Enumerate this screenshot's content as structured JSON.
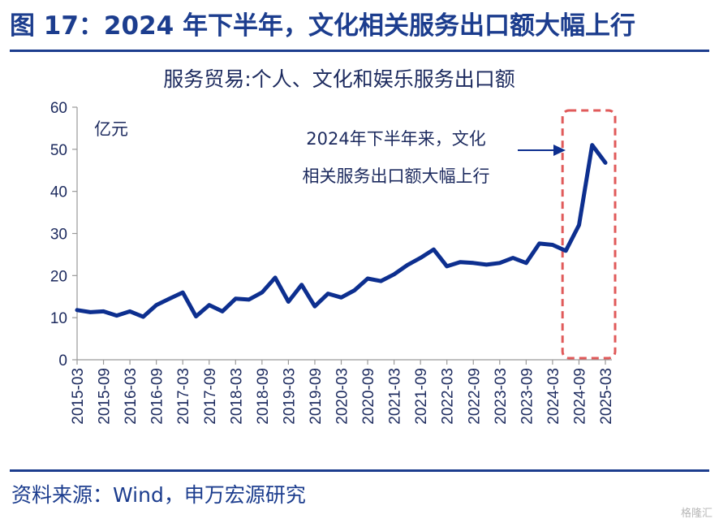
{
  "figure": {
    "title": "图 17：2024 年下半年，文化相关服务出口额大幅上行",
    "source": "资料来源：Wind，申万宏源研究",
    "watermark": "格隆汇"
  },
  "colors": {
    "brand": "#1c3d8e",
    "line": "#0d2f8f",
    "highlight_box": "#e05a5a",
    "text": "#1c2a5e"
  },
  "chart_data": {
    "type": "line",
    "title": "服务贸易:个人、文化和娱乐服务出口额",
    "unit_label": "亿元",
    "ylim": [
      0,
      60
    ],
    "yticks": [
      0,
      10,
      20,
      30,
      40,
      50,
      60
    ],
    "xlabel": "",
    "ylabel": "",
    "grid": false,
    "x_tick_labels": [
      "2015-03",
      "2015-09",
      "2016-03",
      "2016-09",
      "2017-03",
      "2017-09",
      "2018-03",
      "2018-09",
      "2019-03",
      "2019-09",
      "2020-03",
      "2020-09",
      "2021-03",
      "2021-09",
      "2022-03",
      "2022-09",
      "2023-03",
      "2023-09",
      "2024-03",
      "2024-09",
      "2025-03"
    ],
    "x": [
      "2015-03",
      "2015-06",
      "2015-09",
      "2015-12",
      "2016-03",
      "2016-06",
      "2016-09",
      "2016-12",
      "2017-03",
      "2017-06",
      "2017-09",
      "2017-12",
      "2018-03",
      "2018-06",
      "2018-09",
      "2018-12",
      "2019-03",
      "2019-06",
      "2019-09",
      "2019-12",
      "2020-03",
      "2020-06",
      "2020-09",
      "2020-12",
      "2021-03",
      "2021-06",
      "2021-09",
      "2021-12",
      "2022-03",
      "2022-06",
      "2022-09",
      "2022-12",
      "2023-03",
      "2023-06",
      "2023-09",
      "2023-12",
      "2024-03",
      "2024-06",
      "2024-09",
      "2024-12",
      "2025-03"
    ],
    "series": [
      {
        "values": [
          11.8,
          11.3,
          11.5,
          10.5,
          11.5,
          10.2,
          13.0,
          14.5,
          16.0,
          10.3,
          13.0,
          11.5,
          14.5,
          14.3,
          16.0,
          19.5,
          13.8,
          17.8,
          12.7,
          15.7,
          14.8,
          16.5,
          19.3,
          18.7,
          20.3,
          22.5,
          24.2,
          26.2,
          22.2,
          23.2,
          23.0,
          22.6,
          23.0,
          24.2,
          23.0,
          27.6,
          27.3,
          25.9,
          32.0,
          51.0,
          46.8
        ]
      }
    ],
    "annotation": {
      "lines": [
        "2024年下半年来，文化",
        "相关服务出口额大幅上行"
      ],
      "highlight_range": [
        "2024-06",
        "2025-03"
      ]
    }
  }
}
